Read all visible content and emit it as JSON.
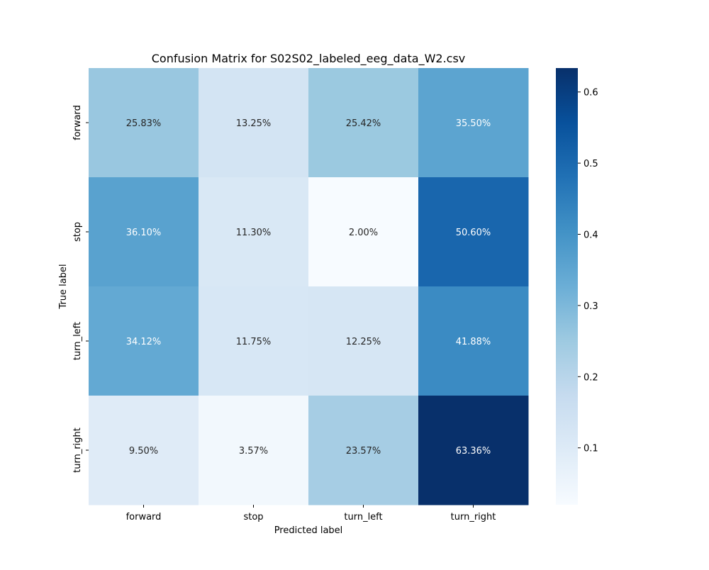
{
  "chart_data": {
    "type": "heatmap",
    "title": "Confusion Matrix for S02S02_labeled_eeg_data_W2.csv",
    "xlabel": "Predicted label",
    "ylabel": "True label",
    "x_categories": [
      "forward",
      "stop",
      "turn_left",
      "turn_right"
    ],
    "y_categories": [
      "forward",
      "stop",
      "turn_left",
      "turn_right"
    ],
    "values": [
      [
        0.2583,
        0.1325,
        0.2542,
        0.355
      ],
      [
        0.361,
        0.113,
        0.02,
        0.506
      ],
      [
        0.3412,
        0.1175,
        0.1225,
        0.4188
      ],
      [
        0.095,
        0.0357,
        0.2357,
        0.6336
      ]
    ],
    "annotations": [
      [
        "25.83%",
        "13.25%",
        "25.42%",
        "35.50%"
      ],
      [
        "36.10%",
        "11.30%",
        "2.00%",
        "50.60%"
      ],
      [
        "34.12%",
        "11.75%",
        "12.25%",
        "41.88%"
      ],
      [
        "9.50%",
        "3.57%",
        "23.57%",
        "63.36%"
      ]
    ],
    "colormap": "Blues",
    "colormap_stops": [
      "#f7fbff",
      "#deebf7",
      "#c6dbef",
      "#9ecae1",
      "#6baed6",
      "#4292c6",
      "#2171b5",
      "#08519c",
      "#08306b"
    ],
    "colorbar": {
      "range": [
        0.02,
        0.6336
      ],
      "ticks": [
        0.1,
        0.2,
        0.3,
        0.4,
        0.5,
        0.6
      ],
      "tick_labels": [
        "0.1",
        "0.2",
        "0.3",
        "0.4",
        "0.5",
        "0.6"
      ]
    },
    "annotation_colors": {
      "dark": "#262626",
      "light": "#ffffff"
    }
  }
}
